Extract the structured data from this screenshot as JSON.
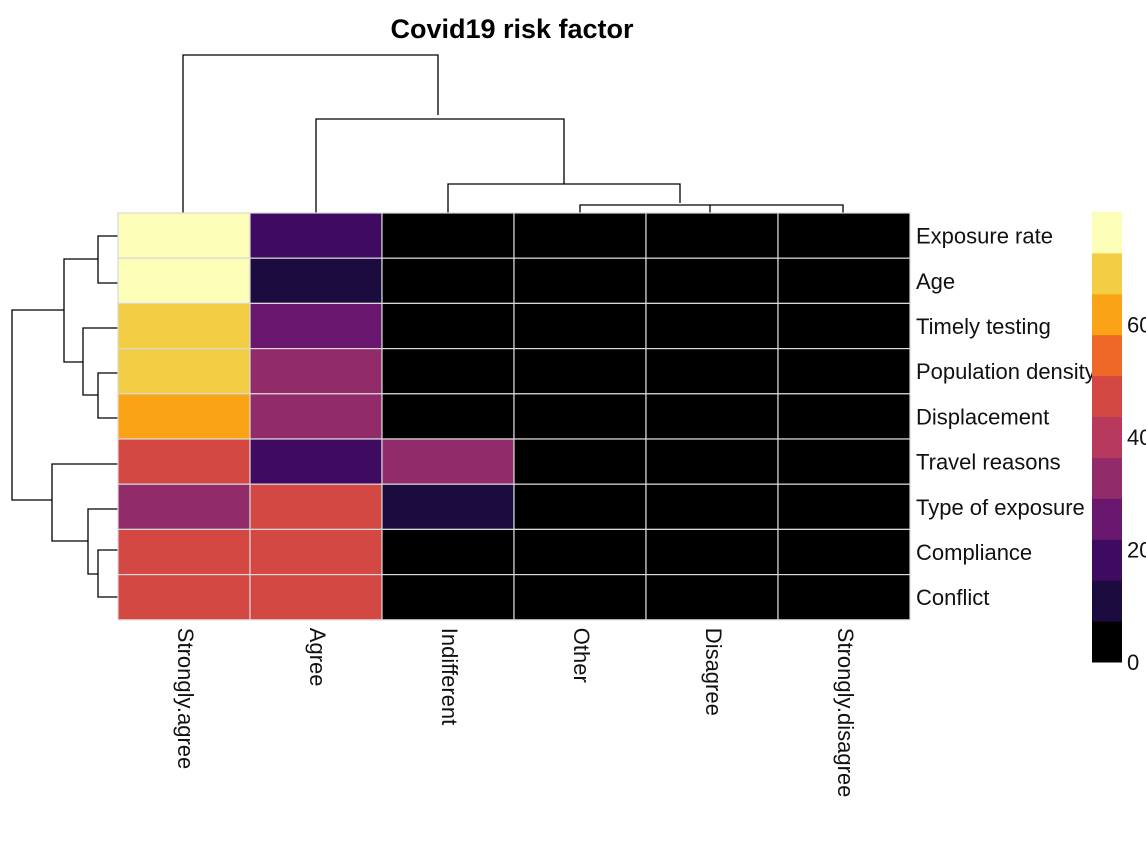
{
  "chart_data": {
    "type": "heatmap",
    "title": "Covid19 risk factor",
    "rows": [
      "Exposure rate",
      "Age",
      "Timely testing",
      "Population density",
      "Displacement",
      "Travel reasons",
      "Type of exposure",
      "Compliance",
      "Conflict"
    ],
    "columns": [
      "Strongly.agree",
      "Agree",
      "Indifferent",
      "Other",
      "Disagree",
      "Strongly.disagree"
    ],
    "values": [
      [
        78,
        18,
        0,
        0,
        0,
        0
      ],
      [
        78,
        8,
        0,
        0,
        0,
        0
      ],
      [
        68,
        27,
        0,
        0,
        0,
        0
      ],
      [
        68,
        35,
        0,
        0,
        0,
        0
      ],
      [
        60,
        35,
        0,
        0,
        0,
        0
      ],
      [
        50,
        18,
        28,
        0,
        0,
        0
      ],
      [
        35,
        50,
        10,
        0,
        0,
        0
      ],
      [
        45,
        50,
        0,
        0,
        0,
        0
      ],
      [
        45,
        45,
        0,
        0,
        0,
        0
      ]
    ],
    "colorscale": [
      "#000000",
      "#1c0b3f",
      "#3e0a62",
      "#6a1770",
      "#922b6a",
      "#b73a5e",
      "#d44844",
      "#ee6928",
      "#fba316",
      "#f3cd43",
      "#fcfdb7"
    ],
    "color_range": [
      0,
      80
    ],
    "colorbar": {
      "ticks": [
        0,
        20,
        40,
        60
      ],
      "labels": [
        "0",
        "20",
        "40",
        "60"
      ]
    },
    "row_dendrogram": true,
    "column_dendrogram": true,
    "grid": true
  }
}
